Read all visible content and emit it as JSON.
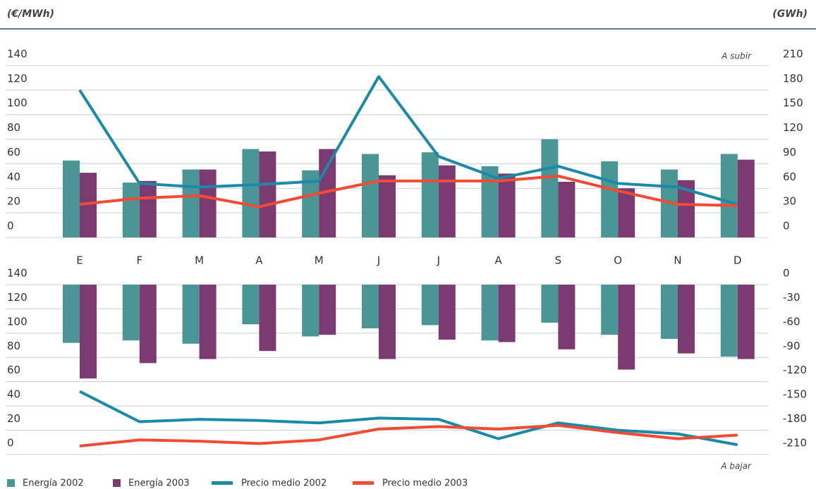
{
  "chart_data": {
    "type": "bar",
    "y_label": "(€/MWh)",
    "y2_label": "(GWh)",
    "categories": [
      "E",
      "F",
      "M",
      "A",
      "M",
      "J",
      "J",
      "A",
      "S",
      "O",
      "N",
      "D"
    ],
    "series": [
      {
        "name": "Energía 2002",
        "color": "#4a9595",
        "kind": "bar",
        "axis": "y2"
      },
      {
        "name": "Energía 2003",
        "color": "#7b3a72",
        "kind": "bar",
        "axis": "y2"
      },
      {
        "name": "Precio medio 2002",
        "color": "#1a8aa8",
        "kind": "line",
        "axis": "y"
      },
      {
        "name": "Precio medio 2003",
        "color": "#f24b34",
        "kind": "line",
        "axis": "y"
      }
    ],
    "grid": true,
    "panels": [
      {
        "annotation": "A subir",
        "ylim": [
          0,
          140
        ],
        "yticks": [
          0,
          20,
          40,
          60,
          80,
          100,
          120,
          140
        ],
        "y2lim": [
          0,
          210
        ],
        "y2ticks": [
          0,
          30,
          60,
          90,
          120,
          150,
          180,
          210
        ],
        "values": [
          [
            94,
            67,
            83,
            108,
            82,
            102,
            104,
            87,
            120,
            93,
            83,
            102
          ],
          [
            79,
            69,
            83,
            105,
            108,
            76,
            88,
            78,
            68,
            60,
            70,
            95
          ],
          [
            120,
            44,
            41,
            43,
            46,
            131,
            66,
            48,
            58,
            44,
            41,
            27
          ],
          [
            27,
            32,
            34,
            25,
            36,
            46,
            46,
            46,
            50,
            38,
            27,
            26
          ]
        ]
      },
      {
        "annotation": "A bajar",
        "ylim": [
          0,
          140
        ],
        "yticks": [
          0,
          20,
          40,
          60,
          80,
          100,
          120,
          140
        ],
        "y2lim": [
          -210,
          0
        ],
        "y2ticks": [
          -210,
          -180,
          -150,
          -120,
          -90,
          -60,
          -30,
          0
        ],
        "values": [
          [
            -72,
            -69,
            -73,
            -49,
            -64,
            -54,
            -50,
            -69,
            -47,
            -62,
            -67,
            -89
          ],
          [
            -116,
            -97,
            -92,
            -82,
            -62,
            -92,
            -68,
            -71,
            -80,
            -105,
            -85,
            -92
          ],
          [
            52,
            27,
            29,
            28,
            26,
            30,
            29,
            13,
            26,
            20,
            17,
            8
          ],
          [
            7,
            12,
            11,
            9,
            12,
            21,
            23,
            21,
            24,
            18,
            13,
            16
          ]
        ]
      }
    ]
  }
}
